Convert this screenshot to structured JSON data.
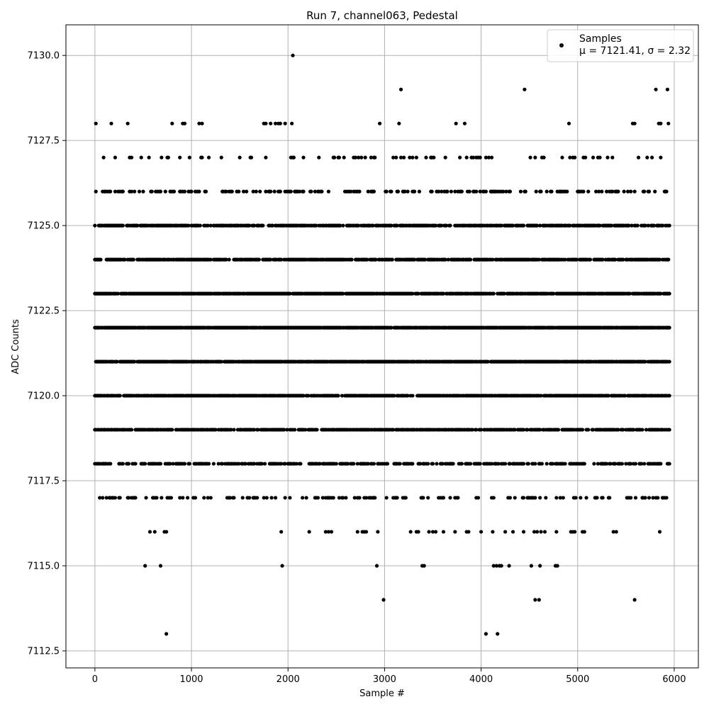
{
  "chart_data": {
    "type": "scatter",
    "title": "Run 7, channel063, Pedestal",
    "xlabel": "Sample #",
    "ylabel": "ADC Counts",
    "xlim": [
      -300,
      6250
    ],
    "ylim": [
      7112.0,
      7130.9
    ],
    "xticks": [
      0,
      1000,
      2000,
      3000,
      4000,
      5000,
      6000
    ],
    "xtick_labels": [
      "0",
      "1000",
      "2000",
      "3000",
      "4000",
      "5000",
      "6000"
    ],
    "yticks": [
      7112.5,
      7115.0,
      7117.5,
      7120.0,
      7122.5,
      7125.0,
      7127.5,
      7130.0
    ],
    "ytick_labels": [
      "7112.5",
      "7115.0",
      "7117.5",
      "7120.0",
      "7122.5",
      "7125.0",
      "7127.5",
      "7130.0"
    ],
    "grid": true,
    "legend_position": "top-right",
    "marker_color": "#000000",
    "series": [
      {
        "name": "Samples",
        "stats_label": "μ = 7121.41, σ = 2.32",
        "points": [
          [
            2050,
            7130
          ],
          [
            3170,
            7129
          ],
          [
            4450,
            7129
          ],
          [
            5810,
            7129
          ],
          [
            5930,
            7129
          ],
          [
            10,
            7128
          ],
          [
            170,
            7128
          ],
          [
            340,
            7128
          ],
          [
            800,
            7128
          ],
          [
            910,
            7128
          ],
          [
            930,
            7128
          ],
          [
            1080,
            7128
          ],
          [
            1110,
            7128
          ],
          [
            1750,
            7128
          ],
          [
            1770,
            7128
          ],
          [
            1820,
            7128
          ],
          [
            1870,
            7128
          ],
          [
            1900,
            7128
          ],
          [
            1920,
            7128
          ],
          [
            1970,
            7128
          ],
          [
            2040,
            7128
          ],
          [
            2950,
            7128
          ],
          [
            3150,
            7128
          ],
          [
            3740,
            7128
          ],
          [
            3830,
            7128
          ],
          [
            4910,
            7128
          ],
          [
            5570,
            7128
          ],
          [
            5590,
            7128
          ],
          [
            5840,
            7128
          ],
          [
            5860,
            7128
          ],
          [
            5940,
            7128
          ],
          [
            4560,
            7114
          ],
          [
            4600,
            7114
          ],
          [
            2990,
            7114
          ],
          [
            5590,
            7114
          ],
          [
            740,
            7113
          ],
          [
            4050,
            7113
          ],
          [
            4170,
            7113
          ],
          [
            520,
            7115
          ],
          [
            680,
            7115
          ],
          [
            1940,
            7115
          ],
          [
            2920,
            7115
          ],
          [
            3390,
            7115
          ],
          [
            3410,
            7115
          ],
          [
            4130,
            7115
          ],
          [
            4160,
            7115
          ],
          [
            4190,
            7115
          ],
          [
            4210,
            7115
          ],
          [
            4290,
            7115
          ],
          [
            4520,
            7115
          ],
          [
            4610,
            7115
          ],
          [
            4770,
            7115
          ],
          [
            4790,
            7115
          ],
          [
            570,
            7116
          ],
          [
            620,
            7116
          ],
          [
            720,
            7116
          ],
          [
            740,
            7116
          ],
          [
            1930,
            7116
          ],
          [
            2220,
            7116
          ],
          [
            2390,
            7116
          ],
          [
            2420,
            7116
          ],
          [
            2450,
            7116
          ],
          [
            2720,
            7116
          ],
          [
            2770,
            7116
          ],
          [
            2790,
            7116
          ],
          [
            2810,
            7116
          ],
          [
            2930,
            7116
          ],
          [
            3270,
            7116
          ],
          [
            3330,
            7116
          ],
          [
            3350,
            7116
          ],
          [
            3460,
            7116
          ],
          [
            3500,
            7116
          ],
          [
            3530,
            7116
          ],
          [
            3610,
            7116
          ],
          [
            3730,
            7116
          ],
          [
            3850,
            7116
          ],
          [
            3870,
            7116
          ],
          [
            4000,
            7116
          ],
          [
            4120,
            7116
          ],
          [
            4250,
            7116
          ],
          [
            4330,
            7116
          ],
          [
            4440,
            7116
          ],
          [
            4550,
            7116
          ],
          [
            4580,
            7116
          ],
          [
            4620,
            7116
          ],
          [
            4660,
            7116
          ],
          [
            4780,
            7116
          ],
          [
            4930,
            7116
          ],
          [
            4950,
            7116
          ],
          [
            4970,
            7116
          ],
          [
            5050,
            7116
          ],
          [
            5070,
            7116
          ],
          [
            5370,
            7116
          ],
          [
            5400,
            7116
          ],
          [
            5850,
            7116
          ],
          [
            0,
            7118
          ],
          [
            90,
            7118
          ],
          [
            160,
            7118
          ],
          [
            2000,
            7118
          ],
          [
            1960,
            7118
          ],
          [
            5840,
            7118
          ],
          [
            80,
            7117
          ],
          [
            210,
            7117
          ],
          [
            5880,
            7117
          ],
          [
            5680,
            7117
          ],
          [
            5670,
            7117
          ],
          [
            1020,
            7117
          ],
          [
            1200,
            7117
          ]
        ],
        "band_levels": [
          7126,
          7125,
          7124,
          7123,
          7122,
          7121,
          7120,
          7119,
          7118,
          7117,
          7127
        ],
        "band_density": [
          0.3,
          0.72,
          0.8,
          0.88,
          0.92,
          0.92,
          0.82,
          0.72,
          0.55,
          0.22,
          0.12
        ]
      }
    ]
  }
}
